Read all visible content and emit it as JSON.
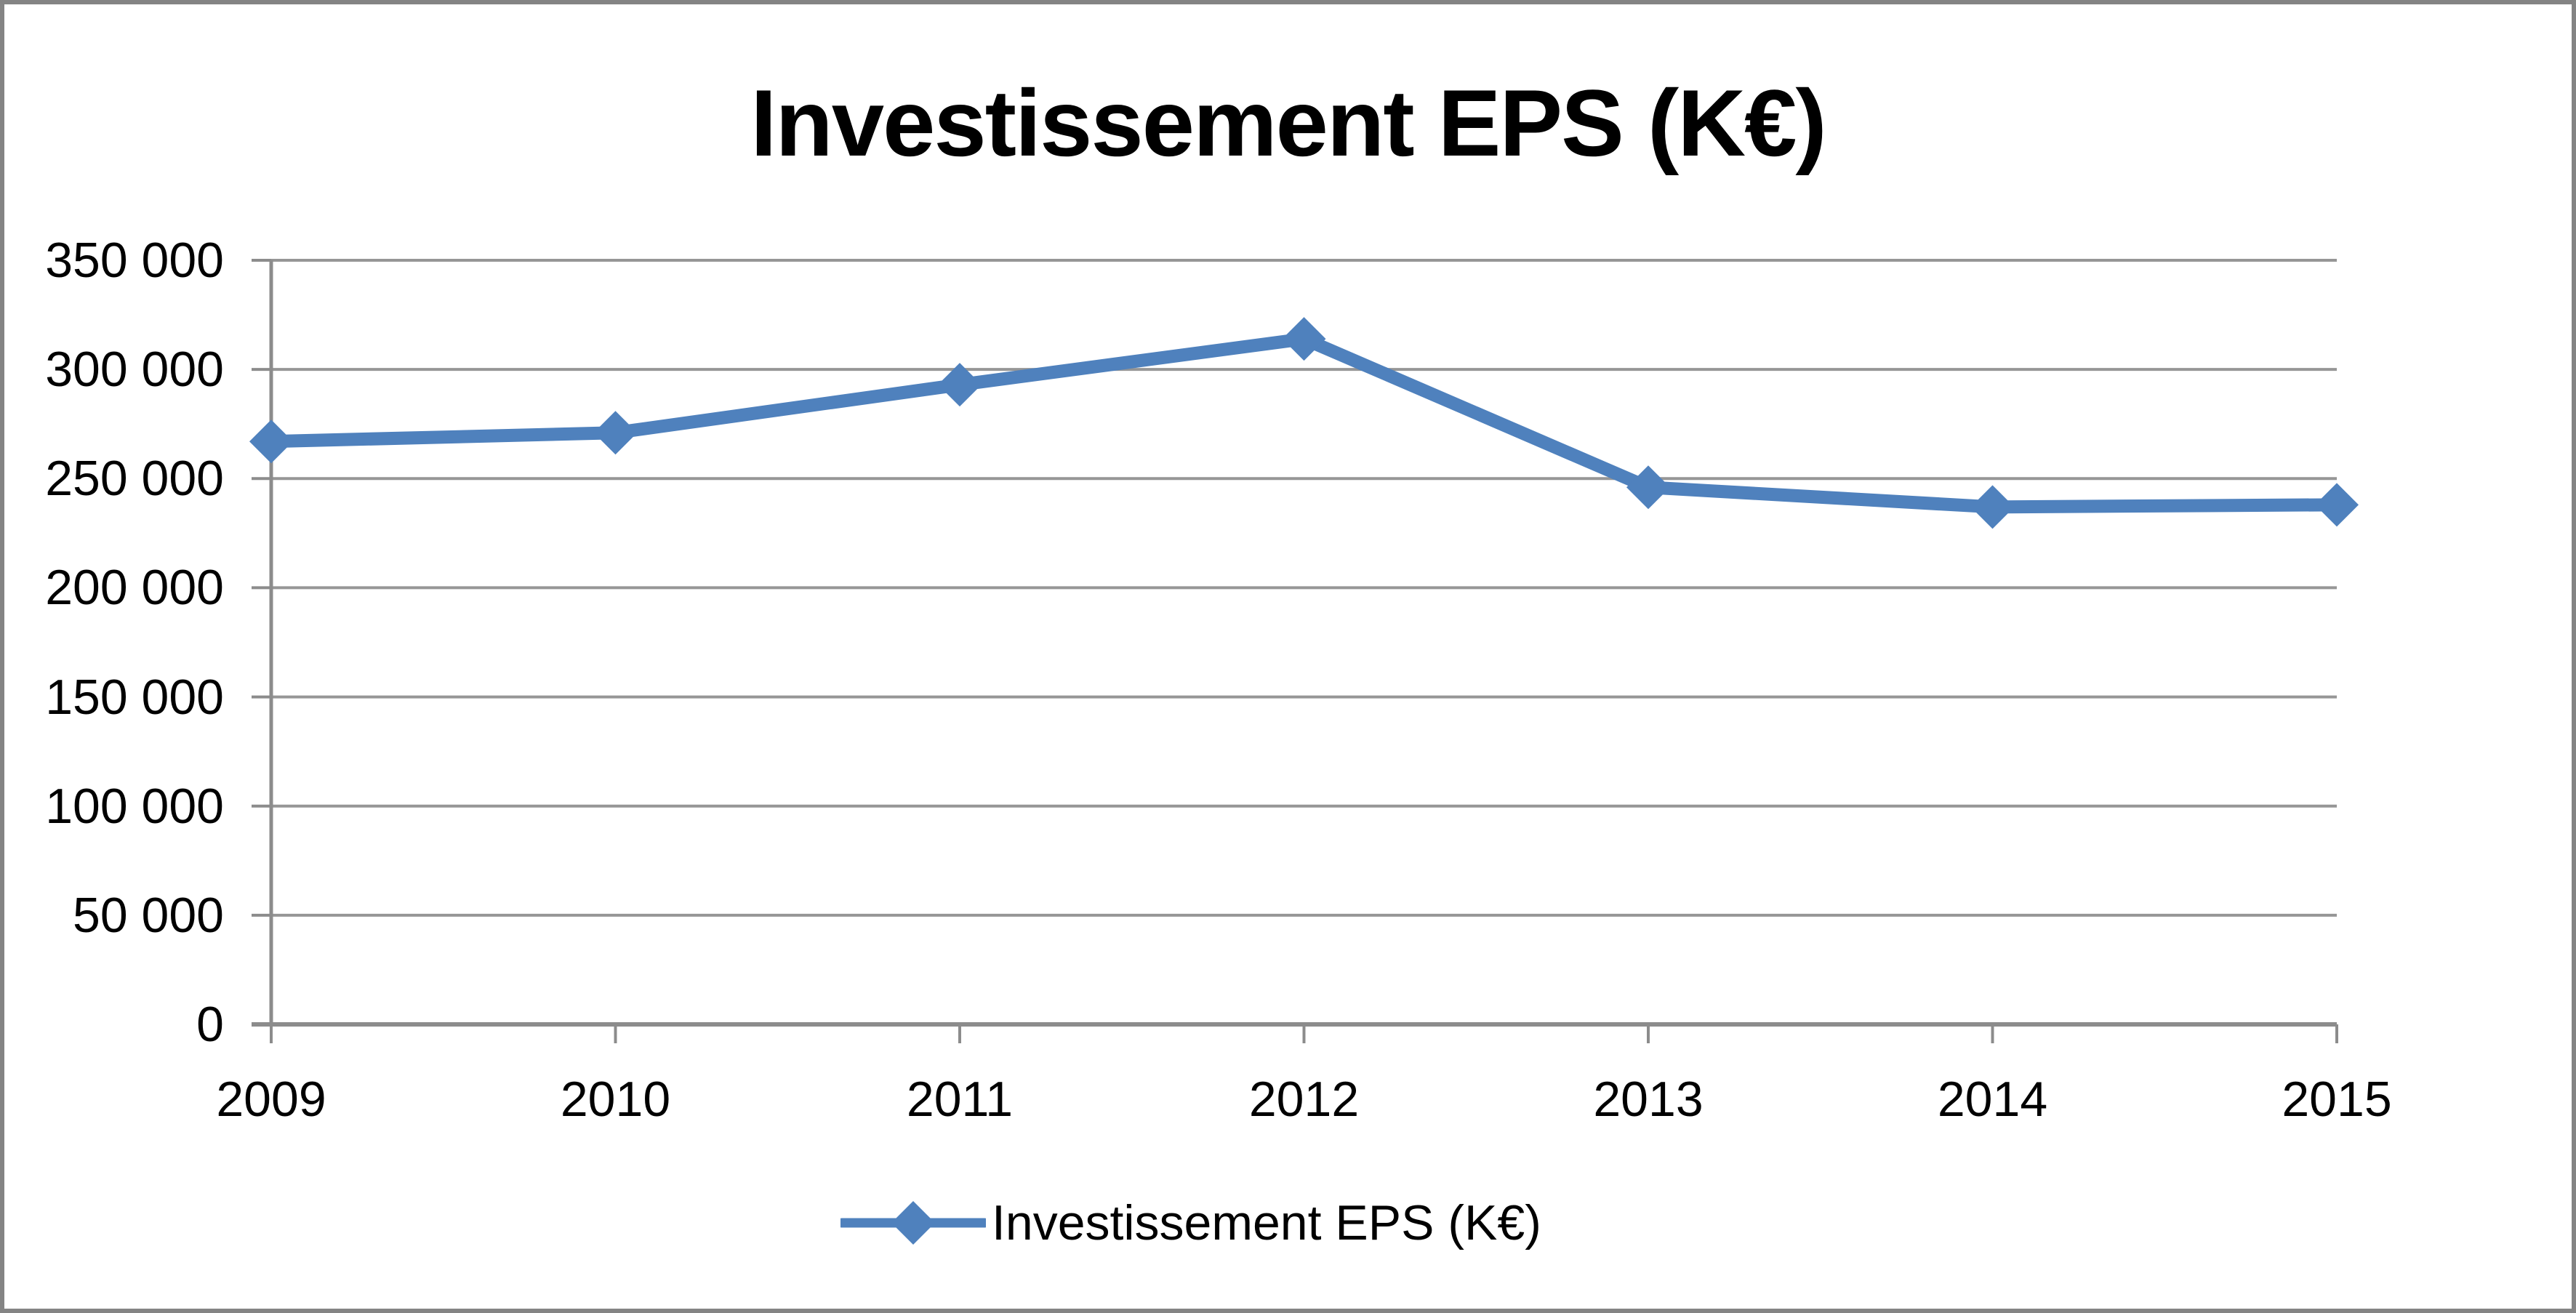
{
  "chart": {
    "title": "Investissement EPS (K€)",
    "colors": {
      "accent": "#4F81BD",
      "gridline": "#969696",
      "axis": "#8C8C8C",
      "frame_border": "#848484",
      "text": "#000000",
      "background": "#FFFFFF"
    },
    "legend": {
      "label": "Investissement EPS (K€)",
      "marker": "diamond-marker"
    }
  },
  "chart_data": {
    "type": "line",
    "title": "Investissement EPS (K€)",
    "categories": [
      "2009",
      "2010",
      "2011",
      "2012",
      "2013",
      "2014",
      "2015"
    ],
    "series": [
      {
        "name": "Investissement EPS (K€)",
        "values": [
          267000,
          271000,
          293000,
          314000,
          246000,
          237000,
          238000
        ]
      }
    ],
    "xlabel": "",
    "ylabel": "",
    "ylim": [
      0,
      350000
    ],
    "ytick_step": 50000,
    "yticks": [
      0,
      50000,
      100000,
      150000,
      200000,
      250000,
      300000,
      350000
    ],
    "ytick_labels": [
      "0",
      "50 000",
      "100 000",
      "150 000",
      "200 000",
      "250 000",
      "300 000",
      "350 000"
    ],
    "grid": true,
    "marker": "diamond",
    "legend_position": "bottom-center"
  }
}
